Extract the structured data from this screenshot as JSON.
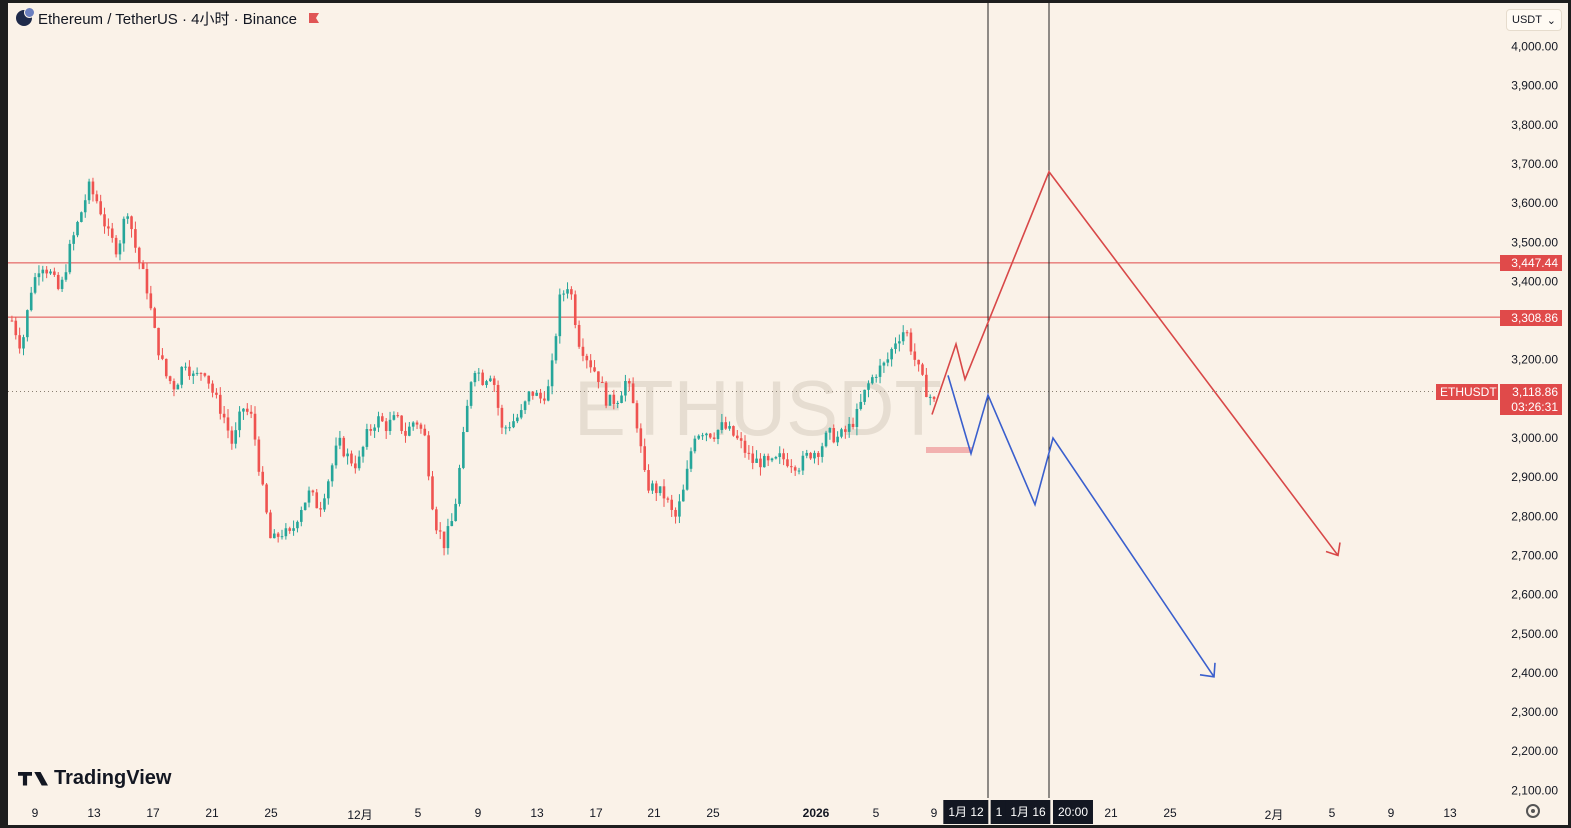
{
  "header": {
    "title": "Ethereum / TetherUS · 4小时 · Binance"
  },
  "currency_select": {
    "value": "USDT",
    "caret": "⌄"
  },
  "watermark": "ETHUSDT",
  "brand": "TradingView",
  "colors": {
    "background": "#faf2e8",
    "up": "#26a69a",
    "down": "#ef5350",
    "level_line": "#e04a4a",
    "red_path": "#d84848",
    "blue_path": "#3a5fcd"
  },
  "price_axis": {
    "labels": [
      "4,000.00",
      "3,900.00",
      "3,800.00",
      "3,700.00",
      "3,600.00",
      "3,500.00",
      "3,400.00",
      "3,200.00",
      "3,000.00",
      "2,900.00",
      "2,800.00",
      "2,700.00",
      "2,600.00",
      "2,500.00",
      "2,400.00",
      "2,300.00",
      "2,200.00",
      "2,100.00"
    ],
    "values": [
      4000,
      3900,
      3800,
      3700,
      3600,
      3500,
      3400,
      3200,
      3000,
      2900,
      2800,
      2700,
      2600,
      2500,
      2400,
      2300,
      2200,
      2100
    ]
  },
  "levels": [
    {
      "label": "3,447.44",
      "value": 3447.44
    },
    {
      "label": "3,308.86",
      "value": 3308.86
    }
  ],
  "current_price": {
    "symbol": "ETHUSDT",
    "price_label": "3,118.86",
    "value": 3118.86,
    "countdown": "03:26:31"
  },
  "time_axis": {
    "labels": [
      {
        "text": "9",
        "bold": false
      },
      {
        "text": "13",
        "bold": false
      },
      {
        "text": "17",
        "bold": false
      },
      {
        "text": "21",
        "bold": false
      },
      {
        "text": "25",
        "bold": false
      },
      {
        "text": "12月",
        "bold": false
      },
      {
        "text": "5",
        "bold": false
      },
      {
        "text": "9",
        "bold": false
      },
      {
        "text": "13",
        "bold": false
      },
      {
        "text": "17",
        "bold": false
      },
      {
        "text": "21",
        "bold": false
      },
      {
        "text": "25",
        "bold": false
      },
      {
        "text": "2026",
        "bold": true
      },
      {
        "text": "5",
        "bold": false
      },
      {
        "text": "9",
        "bold": false
      },
      {
        "text": "21",
        "bold": false
      },
      {
        "text": "25",
        "bold": false
      },
      {
        "text": "2月",
        "bold": false
      },
      {
        "text": "5",
        "bold": false
      },
      {
        "text": "9",
        "bold": false
      },
      {
        "text": "13",
        "bold": false
      }
    ],
    "cursors": [
      "1月 12",
      "1",
      "1月 16",
      "20:00"
    ]
  },
  "chart_data": {
    "type": "candlestick",
    "symbol": "ETHUSDT",
    "interval": "4小时",
    "exchange": "Binance",
    "ylim": [
      2060,
      4060
    ],
    "close_path": [
      3300,
      3230,
      3380,
      3450,
      3420,
      3370,
      3480,
      3560,
      3640,
      3600,
      3520,
      3480,
      3590,
      3470,
      3390,
      3250,
      3160,
      3130,
      3200,
      3150,
      3180,
      3110,
      3060,
      2980,
      3080,
      3050,
      2880,
      2730,
      2760,
      2750,
      2820,
      2860,
      2820,
      2900,
      2990,
      2950,
      2930,
      3010,
      3050,
      3030,
      3050,
      3010,
      3050,
      3000,
      2790,
      2730,
      2800,
      3000,
      3190,
      3150,
      3170,
      3020,
      3040,
      3060,
      3120,
      3100,
      3130,
      3350,
      3400,
      3250,
      3200,
      3160,
      3090,
      3100,
      3150,
      3050,
      2880,
      2870,
      2850,
      2790,
      2870,
      3010,
      3020,
      3010,
      3030,
      3010,
      2980,
      2940,
      2940,
      2930,
      2950,
      2940,
      2930,
      2960,
      2970,
      3010,
      3000,
      3020,
      3060,
      3130,
      3170,
      3190,
      3250,
      3280,
      3200,
      3130,
      3090
    ],
    "red_projection": [
      3060,
      3240,
      3150,
      3680,
      2700
    ],
    "blue_projection": [
      3160,
      2960,
      3110,
      2830,
      3000,
      2390
    ]
  }
}
